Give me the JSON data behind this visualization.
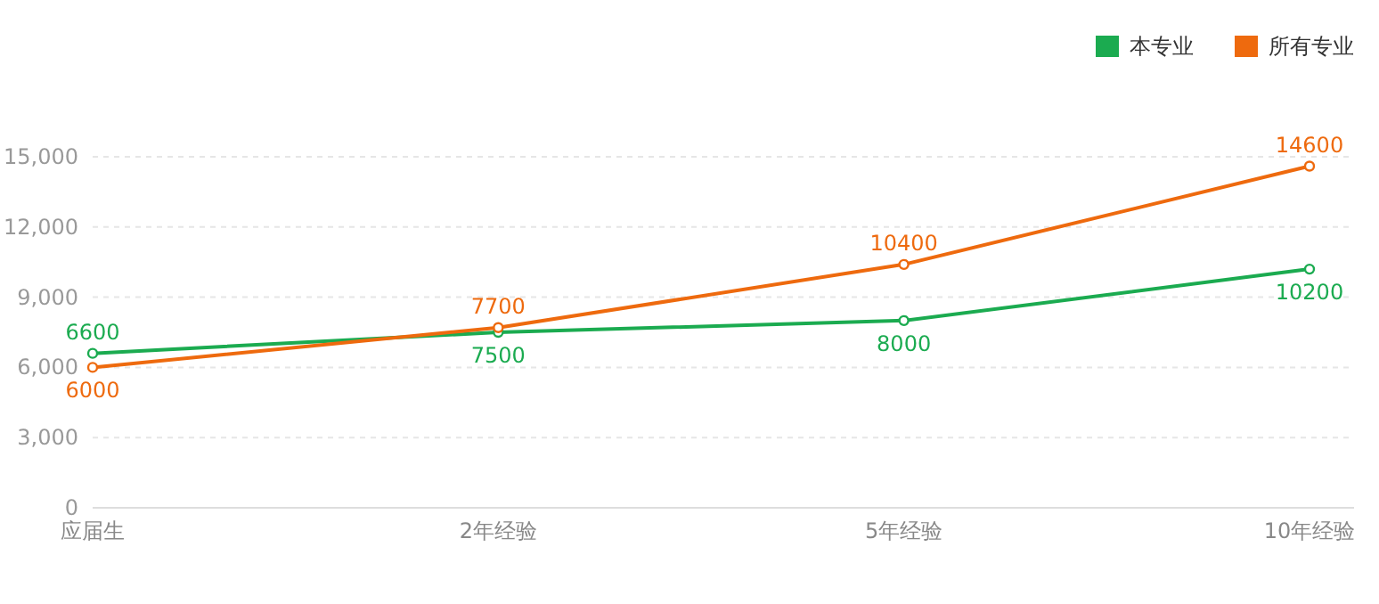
{
  "chart_data": {
    "type": "line",
    "categories": [
      "应届生",
      "2年经验",
      "5年经验",
      "10年经验"
    ],
    "series": [
      {
        "name": "本专业",
        "color": "#1bab50",
        "values": [
          6600,
          7500,
          8000,
          10200
        ]
      },
      {
        "name": "所有专业",
        "color": "#ee6a0e",
        "values": [
          6000,
          7700,
          10400,
          14600
        ]
      }
    ],
    "ylim": [
      0,
      15000
    ],
    "yticks": [
      0,
      {
        "value": 3000,
        "label": "3,000"
      },
      {
        "value": 6000,
        "label": "6,000"
      },
      {
        "value": 9000,
        "label": "9,000"
      },
      {
        "value": 12000,
        "label": "12,000"
      },
      {
        "value": 15000,
        "label": "15,000"
      }
    ],
    "grid": "y",
    "legend": "top right",
    "marker": "circle",
    "data_labels": true
  }
}
